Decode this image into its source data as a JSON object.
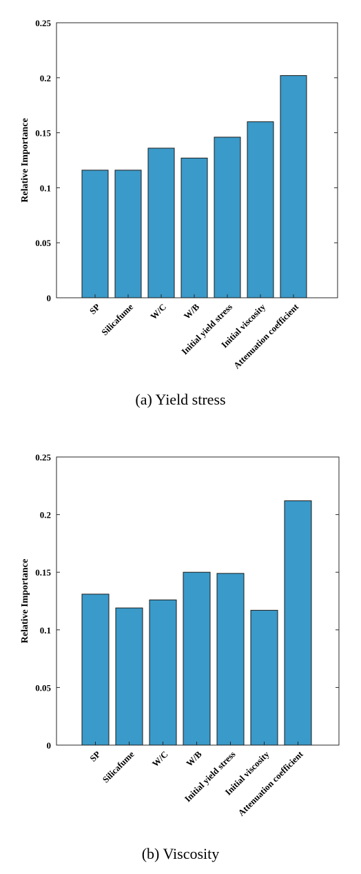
{
  "figure": {
    "panels": [
      {
        "caption": "(a) Yield stress"
      },
      {
        "caption": "(b) Viscosity"
      }
    ]
  },
  "colors": {
    "bar_fill": "#3a9ac9",
    "bar_stroke": "#1a1a1a",
    "axis": "#262626"
  },
  "chart_data": [
    {
      "type": "bar",
      "title": "",
      "xlabel": "",
      "ylabel": "Relative Importance",
      "ylim": [
        0,
        0.25
      ],
      "yticks": [
        0,
        0.05,
        0.1,
        0.15,
        0.2,
        0.25
      ],
      "ytick_labels": [
        "0",
        "0.05",
        "0.1",
        "0.15",
        "0.2",
        "0.25"
      ],
      "categories": [
        "SP",
        "Silicafume",
        "W/C",
        "W/B",
        "Initial yield stress",
        "Initial viscosity",
        "Attenuation coefficient"
      ],
      "values": [
        0.116,
        0.116,
        0.136,
        0.127,
        0.146,
        0.16,
        0.202
      ],
      "grid": false,
      "legend": "none"
    },
    {
      "type": "bar",
      "title": "",
      "xlabel": "",
      "ylabel": "Relative Importance",
      "ylim": [
        0,
        0.25
      ],
      "yticks": [
        0,
        0.05,
        0.1,
        0.15,
        0.2,
        0.25
      ],
      "ytick_labels": [
        "0",
        "0.05",
        "0.1",
        "0.15",
        "0.2",
        "0.25"
      ],
      "categories": [
        "SP",
        "Silicafume",
        "W/C",
        "W/B",
        "Initial yield stress",
        "Initial viscosity",
        "Attenuation coefficient"
      ],
      "values": [
        0.131,
        0.119,
        0.126,
        0.15,
        0.149,
        0.117,
        0.212
      ],
      "grid": false,
      "legend": "none"
    }
  ]
}
